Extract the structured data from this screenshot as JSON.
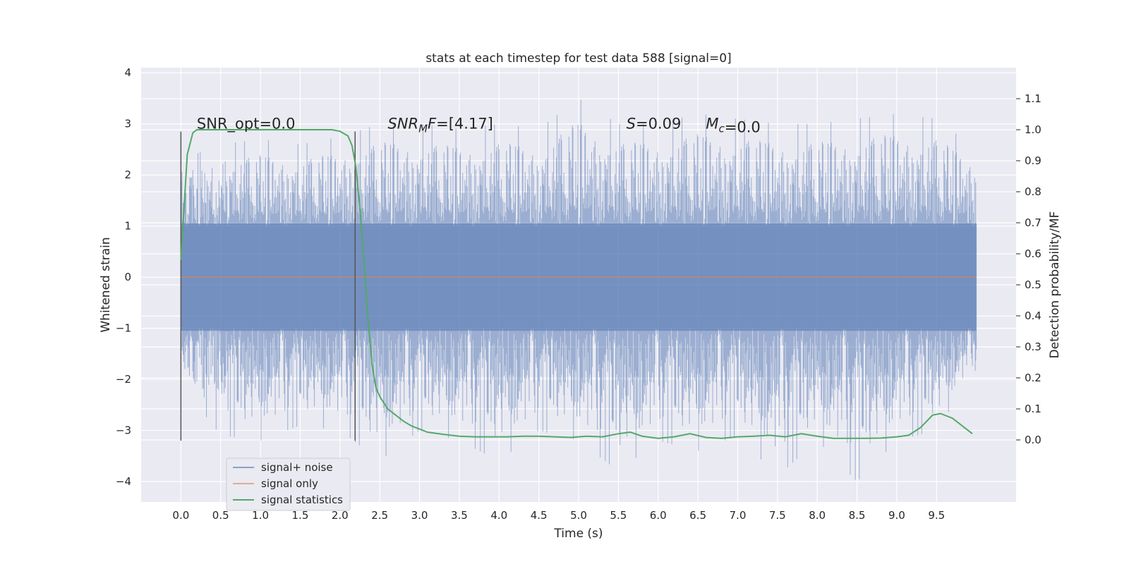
{
  "chart_data": {
    "type": "line",
    "title": "stats at each timestep for test data 588 [signal=0]",
    "xlabel": "Time (s)",
    "ylabel": "Whitened strain",
    "ylabel_right": "Detection probability/MF",
    "xlim": [
      -0.5,
      10.5
    ],
    "ylim": [
      -4.4,
      4.1
    ],
    "ylim_right": [
      -0.2,
      1.2
    ],
    "xticks": [
      0.0,
      0.5,
      1.0,
      1.5,
      2.0,
      2.5,
      3.0,
      3.5,
      4.0,
      4.5,
      5.0,
      5.5,
      6.0,
      6.5,
      7.0,
      7.5,
      8.0,
      8.5,
      9.0,
      9.5
    ],
    "xtick_labels": [
      "0.0",
      "0.5",
      "1.0",
      "1.5",
      "2.0",
      "2.5",
      "3.0",
      "3.5",
      "4.0",
      "4.5",
      "5.0",
      "5.5",
      "6.0",
      "6.5",
      "7.0",
      "7.5",
      "8.0",
      "8.5",
      "9.0",
      "9.5"
    ],
    "yticks": [
      -4,
      -3,
      -2,
      -1,
      0,
      1,
      2,
      3,
      4
    ],
    "ytick_labels": [
      "−4",
      "−3",
      "−2",
      "−1",
      "0",
      "1",
      "2",
      "3",
      "4"
    ],
    "yticks_right": [
      0.0,
      0.1,
      0.2,
      0.3,
      0.4,
      0.5,
      0.6,
      0.7,
      0.8,
      0.9,
      1.0,
      1.1
    ],
    "ytick_labels_right": [
      "0.0",
      "0.1",
      "0.2",
      "0.3",
      "0.4",
      "0.5",
      "0.6",
      "0.7",
      "0.8",
      "0.9",
      "1.0",
      "1.1"
    ],
    "grid": true,
    "legend_position": "bottom-left",
    "colors": {
      "background": "#eaeaf2",
      "grid": "#ffffff",
      "signal_noise": "#4c72b0",
      "signal_only": "#dd8452",
      "signal_statistics": "#55a868",
      "vline": "#555555"
    },
    "series": [
      {
        "name": "signal+ noise",
        "axis": "left",
        "color": "#4c72b0",
        "style": "dense noise band",
        "x_range": [
          0.0,
          10.0
        ],
        "envelope": {
          "x": [
            0.0,
            0.5,
            1.0,
            1.5,
            2.0,
            2.5,
            3.0,
            3.5,
            4.0,
            4.5,
            5.0,
            5.5,
            6.0,
            6.5,
            7.0,
            7.5,
            8.0,
            8.5,
            9.0,
            9.5,
            10.0
          ],
          "upper": [
            2.3,
            2.6,
            2.7,
            2.6,
            2.75,
            3.0,
            3.0,
            2.9,
            3.0,
            2.9,
            3.5,
            3.0,
            3.0,
            3.2,
            3.1,
            3.0,
            3.0,
            3.1,
            3.2,
            3.1,
            2.5
          ],
          "lower": [
            -2.1,
            -3.1,
            -3.2,
            -2.9,
            -3.0,
            -3.6,
            -3.0,
            -3.2,
            -3.6,
            -3.0,
            -3.2,
            -3.8,
            -3.2,
            -3.4,
            -3.1,
            -3.9,
            -3.2,
            -4.0,
            -3.2,
            -3.0,
            -1.8
          ]
        }
      },
      {
        "name": "signal only",
        "axis": "left",
        "color": "#dd8452",
        "x": [
          0.0,
          10.0
        ],
        "y": [
          0.0,
          0.0
        ]
      },
      {
        "name": "signal statistics",
        "axis": "right",
        "color": "#55a868",
        "x": [
          0.0,
          0.08,
          0.15,
          0.2,
          0.3,
          0.5,
          1.0,
          1.5,
          1.9,
          2.0,
          2.1,
          2.15,
          2.2,
          2.25,
          2.3,
          2.35,
          2.4,
          2.45,
          2.5,
          2.55,
          2.6,
          2.7,
          2.8,
          2.9,
          3.0,
          3.1,
          3.3,
          3.5,
          3.7,
          3.9,
          4.1,
          4.3,
          4.5,
          4.7,
          4.9,
          5.1,
          5.3,
          5.5,
          5.65,
          5.8,
          6.0,
          6.2,
          6.4,
          6.6,
          6.8,
          7.0,
          7.2,
          7.4,
          7.6,
          7.8,
          8.0,
          8.2,
          8.4,
          8.6,
          8.8,
          9.0,
          9.15,
          9.3,
          9.45,
          9.55,
          9.7,
          9.85,
          9.95
        ],
        "y": [
          0.58,
          0.92,
          0.99,
          1.0,
          1.0,
          1.0,
          1.0,
          1.0,
          1.0,
          0.995,
          0.98,
          0.95,
          0.88,
          0.75,
          0.58,
          0.4,
          0.25,
          0.17,
          0.14,
          0.12,
          0.1,
          0.08,
          0.06,
          0.045,
          0.035,
          0.025,
          0.018,
          0.012,
          0.01,
          0.01,
          0.01,
          0.012,
          0.012,
          0.01,
          0.008,
          0.012,
          0.01,
          0.02,
          0.025,
          0.012,
          0.005,
          0.01,
          0.02,
          0.008,
          0.005,
          0.01,
          0.012,
          0.015,
          0.01,
          0.02,
          0.012,
          0.005,
          0.005,
          0.005,
          0.006,
          0.01,
          0.015,
          0.04,
          0.08,
          0.085,
          0.07,
          0.04,
          0.02
        ]
      }
    ],
    "vlines": [
      {
        "x": 0.0,
        "y_from": -3.2,
        "y_to": 2.85
      },
      {
        "x": 2.19,
        "y_from": -3.2,
        "y_to": 2.85
      }
    ],
    "annotations": [
      {
        "x": 0.2,
        "y": 3.0,
        "text": "SNR_opt=0.0",
        "math": false
      },
      {
        "x": 2.6,
        "y": 3.0,
        "math": true,
        "base": "SNR",
        "sub": "M",
        "after_sub_italic": "F",
        "rest": "=[4.17]"
      },
      {
        "x": 5.6,
        "y": 3.0,
        "math": true,
        "base": "S",
        "sub": "",
        "after_sub_italic": "",
        "rest": "=0.09"
      },
      {
        "x": 6.6,
        "y": 3.0,
        "math": true,
        "base": "M",
        "sub": "c",
        "after_sub_italic": "",
        "rest": "=0.0"
      }
    ],
    "legend": [
      "signal+ noise",
      "signal only",
      "signal statistics"
    ]
  }
}
